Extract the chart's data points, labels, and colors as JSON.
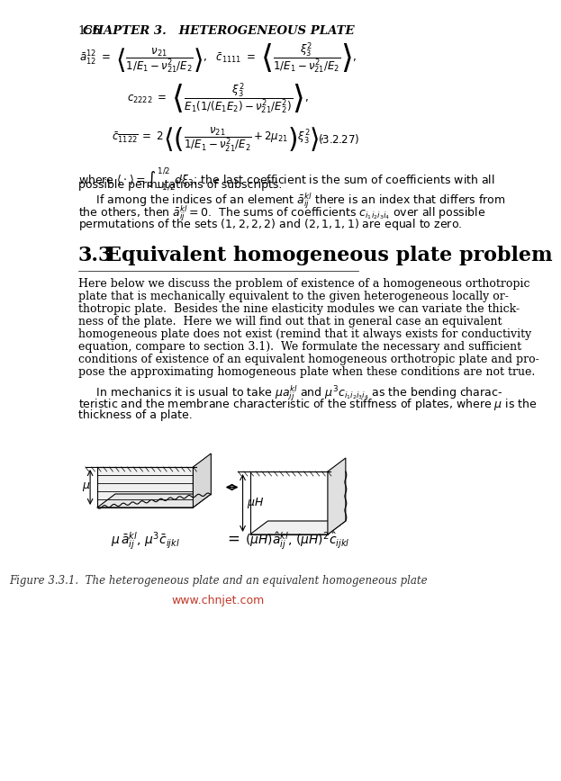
{
  "page_num": "156",
  "chapter_header": "CHAPTER 3.   HETEROGENEOUS PLATE",
  "bg_color": "#ffffff",
  "text_color": "#000000",
  "fig_caption_color": "#c0392b",
  "watermark_color": "#c0392b",
  "watermark": "www.chnjet.com",
  "fig_caption": "Figure 3.3.1.  The heterogeneous plate and an equivalent homogeneous plate",
  "section_num": "3.3",
  "section_title": "Equivalent homogeneous plate problem",
  "paragraph1": "Here below we discuss the problem of existence of a homogeneous orthotropic plate that is mechanically equivalent to the given heterogeneous locally or-thotropic plate.  Besides the nine elasticity modules we can variate the thick-ness of the plate.  Here we will find out that in general case an equivalent homogeneous plate does not exist (remind that it always exists for conductivity equation, compare to section 3.1).  We formulate the necessary and sufficient conditions of existence of an equivalent homogeneous orthotropic plate and pro-pose the approximating homogeneous plate when these conditions are not true.",
  "paragraph2": "In mechanics it is usual to take μāᵏˡᵢʲ and μ³cᵢ₁ᵢ₂ᵢ₃ᵢ₄ as the bending charac-teristic and the membrane characteristic of the stiffness of plates, where μ is the thickness of a plate.",
  "body_text_size": 9.5,
  "section_title_size": 16
}
